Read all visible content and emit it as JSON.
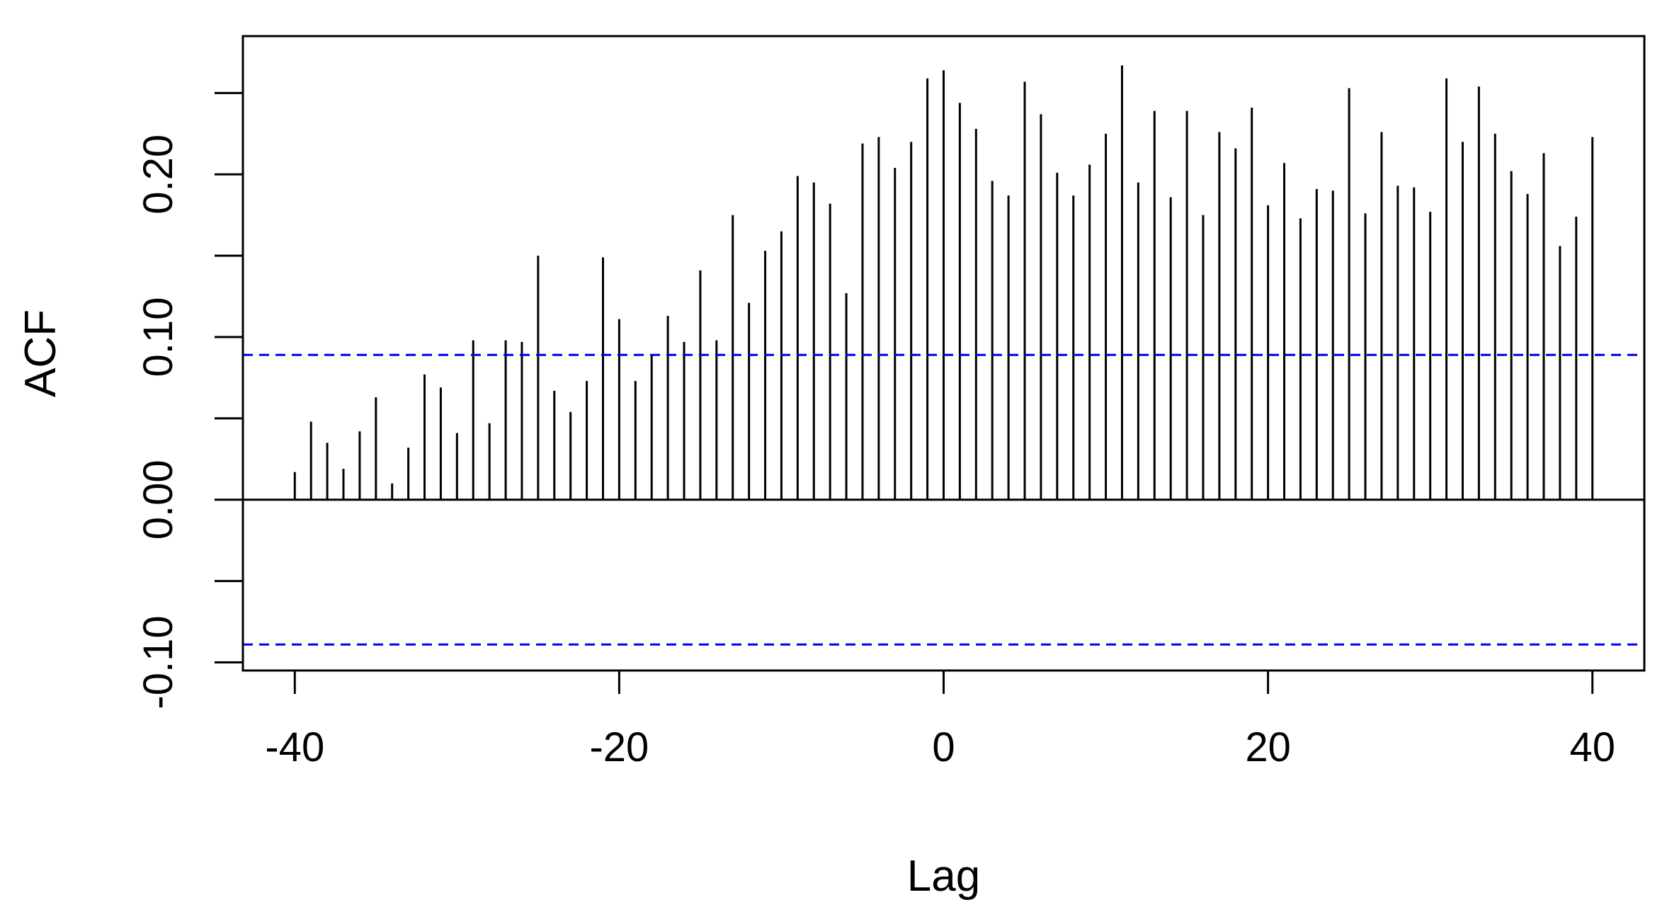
{
  "chart_data": {
    "type": "bar",
    "xlabel": "Lag",
    "ylabel": "ACF",
    "xlim": [
      -43.2,
      43.2
    ],
    "ylim": [
      -0.105,
      0.285
    ],
    "xticks": [
      -40,
      -20,
      0,
      20,
      40
    ],
    "xtick_labels": [
      "-40",
      "-20",
      "0",
      "20",
      "40"
    ],
    "yticks": [
      -0.1,
      -0.05,
      0.0,
      0.05,
      0.1,
      0.15,
      0.2,
      0.25
    ],
    "ytick_labels": [
      "-0.10",
      "",
      "0.00",
      "",
      "0.10",
      "",
      "0.20",
      ""
    ],
    "confidence_band": {
      "upper": 0.089,
      "lower": -0.089,
      "color": "#0000ee",
      "style": "dashed"
    },
    "zero_line": true,
    "grid": false,
    "bar_color": "#000000",
    "series": [
      {
        "x": [
          -40,
          -39,
          -38,
          -37,
          -36,
          -35,
          -34,
          -33,
          -32,
          -31,
          -30,
          -29,
          -28,
          -27,
          -26,
          -25,
          -24,
          -23,
          -22,
          -21,
          -20,
          -19,
          -18,
          -17,
          -16,
          -15,
          -14,
          -13,
          -12,
          -11,
          -10,
          -9,
          -8,
          -7,
          -6,
          -5,
          -4,
          -3,
          -2,
          -1,
          0,
          1,
          2,
          3,
          4,
          5,
          6,
          7,
          8,
          9,
          10,
          11,
          12,
          13,
          14,
          15,
          16,
          17,
          18,
          19,
          20,
          21,
          22,
          23,
          24,
          25,
          26,
          27,
          28,
          29,
          30,
          31,
          32,
          33,
          34,
          35,
          36,
          37,
          38,
          39,
          40
        ],
        "values": [
          0.017,
          0.048,
          0.035,
          0.019,
          0.042,
          0.063,
          0.01,
          0.032,
          0.077,
          0.069,
          0.041,
          0.098,
          0.047,
          0.098,
          0.097,
          0.15,
          0.067,
          0.054,
          0.073,
          0.149,
          0.111,
          0.073,
          0.089,
          0.113,
          0.097,
          0.141,
          0.098,
          0.175,
          0.121,
          0.153,
          0.165,
          0.199,
          0.195,
          0.182,
          0.127,
          0.219,
          0.223,
          0.204,
          0.22,
          0.259,
          0.264,
          0.244,
          0.228,
          0.196,
          0.187,
          0.257,
          0.237,
          0.201,
          0.187,
          0.206,
          0.225,
          0.267,
          0.195,
          0.239,
          0.186,
          0.239,
          0.175,
          0.226,
          0.216,
          0.241,
          0.181,
          0.207,
          0.173,
          0.191,
          0.19,
          0.253,
          0.176,
          0.226,
          0.193,
          0.192,
          0.177,
          0.259,
          0.22,
          0.254,
          0.225,
          0.202,
          0.188,
          0.213,
          0.156,
          0.174,
          0.223
        ]
      }
    ]
  }
}
